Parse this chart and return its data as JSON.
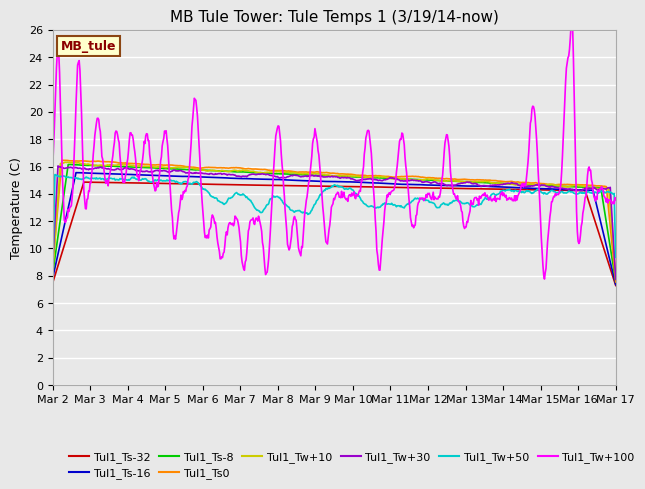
{
  "title": "MB Tule Tower: Tule Temps 1 (3/19/14-now)",
  "ylabel": "Temperature (C)",
  "ylim": [
    0,
    26
  ],
  "yticks": [
    0,
    2,
    4,
    6,
    8,
    10,
    12,
    14,
    16,
    18,
    20,
    22,
    24,
    26
  ],
  "xtick_labels": [
    "Mar 2",
    "Mar 3",
    "Mar 4",
    "Mar 5",
    "Mar 6",
    "Mar 7",
    "Mar 8",
    "Mar 9",
    "Mar 10",
    "Mar 11",
    "Mar 12",
    "Mar 13",
    "Mar 14",
    "Mar 15",
    "Mar 16",
    "Mar 17"
  ],
  "plot_bg_color": "#e8e8e8",
  "legend_box_color": "#ffffcc",
  "legend_box_edge": "#8B4513",
  "legend_box_text": "#8B0000",
  "legend_box_label": "MB_tule",
  "series": [
    {
      "label": "Tul1_Ts-32",
      "color": "#cc0000"
    },
    {
      "label": "Tul1_Ts-16",
      "color": "#0000cc"
    },
    {
      "label": "Tul1_Ts-8",
      "color": "#00cc00"
    },
    {
      "label": "Tul1_Ts0",
      "color": "#ff8800"
    },
    {
      "label": "Tul1_Tw+10",
      "color": "#cccc00"
    },
    {
      "label": "Tul1_Tw+30",
      "color": "#9900cc"
    },
    {
      "label": "Tul1_Tw+50",
      "color": "#00cccc"
    },
    {
      "label": "Tul1_Tw+100",
      "color": "#ff00ff"
    }
  ],
  "title_fontsize": 11,
  "axis_fontsize": 9,
  "tick_fontsize": 8,
  "legend_fontsize": 8
}
